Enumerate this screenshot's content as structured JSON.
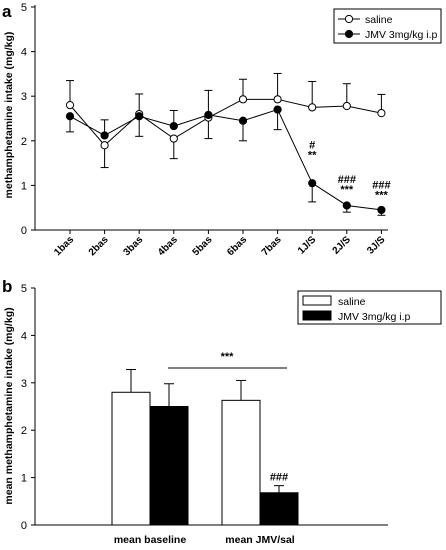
{
  "panel_labels": [
    "a",
    "b"
  ],
  "chart_data": [
    {
      "type": "line",
      "panel": "a",
      "ylabel": "methamphetamine intake (mg/kg)",
      "xlabel": "",
      "ylim": [
        0,
        5
      ],
      "yticks": [
        "0",
        "1",
        "2",
        "3",
        "4",
        "5"
      ],
      "categories": [
        "1bas",
        "2bas",
        "3bas",
        "4bas",
        "5bas",
        "6bas",
        "7bas",
        "1J/S",
        "2J/S",
        "3J/S"
      ],
      "legend_position": "top-right",
      "series": [
        {
          "name": "saline",
          "marker": "open-circle",
          "values": [
            2.8,
            1.9,
            2.6,
            2.05,
            2.52,
            2.93,
            2.93,
            2.75,
            2.78,
            2.62
          ],
          "error": [
            0.55,
            0.5,
            0.45,
            0.45,
            0.47,
            0.45,
            0.58,
            0.58,
            0.5,
            0.42
          ]
        },
        {
          "name": "JMV 3mg/kg i.p",
          "marker": "filled-circle",
          "values": [
            2.55,
            2.12,
            2.55,
            2.33,
            2.58,
            2.45,
            2.7,
            1.05,
            0.55,
            0.45
          ],
          "error": [
            0.35,
            0.35,
            0.45,
            0.35,
            0.55,
            0.45,
            0.45,
            0.42,
            0.15,
            0.12
          ]
        }
      ],
      "annotations": [
        {
          "category": "1J/S",
          "lines": [
            "#",
            "**"
          ]
        },
        {
          "category": "2J/S",
          "lines": [
            "###",
            "***"
          ]
        },
        {
          "category": "3J/S",
          "lines": [
            "###",
            "***"
          ]
        }
      ]
    },
    {
      "type": "bar",
      "panel": "b",
      "ylabel": "mean methamphetamine intake (mg/kg)",
      "xlabel": "",
      "ylim": [
        0,
        5
      ],
      "yticks": [
        "0",
        "1",
        "2",
        "3",
        "4",
        "5"
      ],
      "categories": [
        "mean baseline",
        "mean JMV/sal"
      ],
      "legend_position": "top-right",
      "series": [
        {
          "name": "saline",
          "fill": "#ffffff",
          "values": [
            2.8,
            2.63
          ],
          "error": [
            0.48,
            0.42
          ]
        },
        {
          "name": "JMV 3mg/kg i.p",
          "fill": "#000000",
          "values": [
            2.5,
            0.68
          ],
          "error": [
            0.48,
            0.15
          ]
        }
      ],
      "annotations": [
        {
          "type": "bracket",
          "text": "***"
        },
        {
          "type": "bar-label",
          "category": "mean JMV/sal",
          "series": "JMV 3mg/kg i.p",
          "text": "###"
        }
      ]
    }
  ]
}
